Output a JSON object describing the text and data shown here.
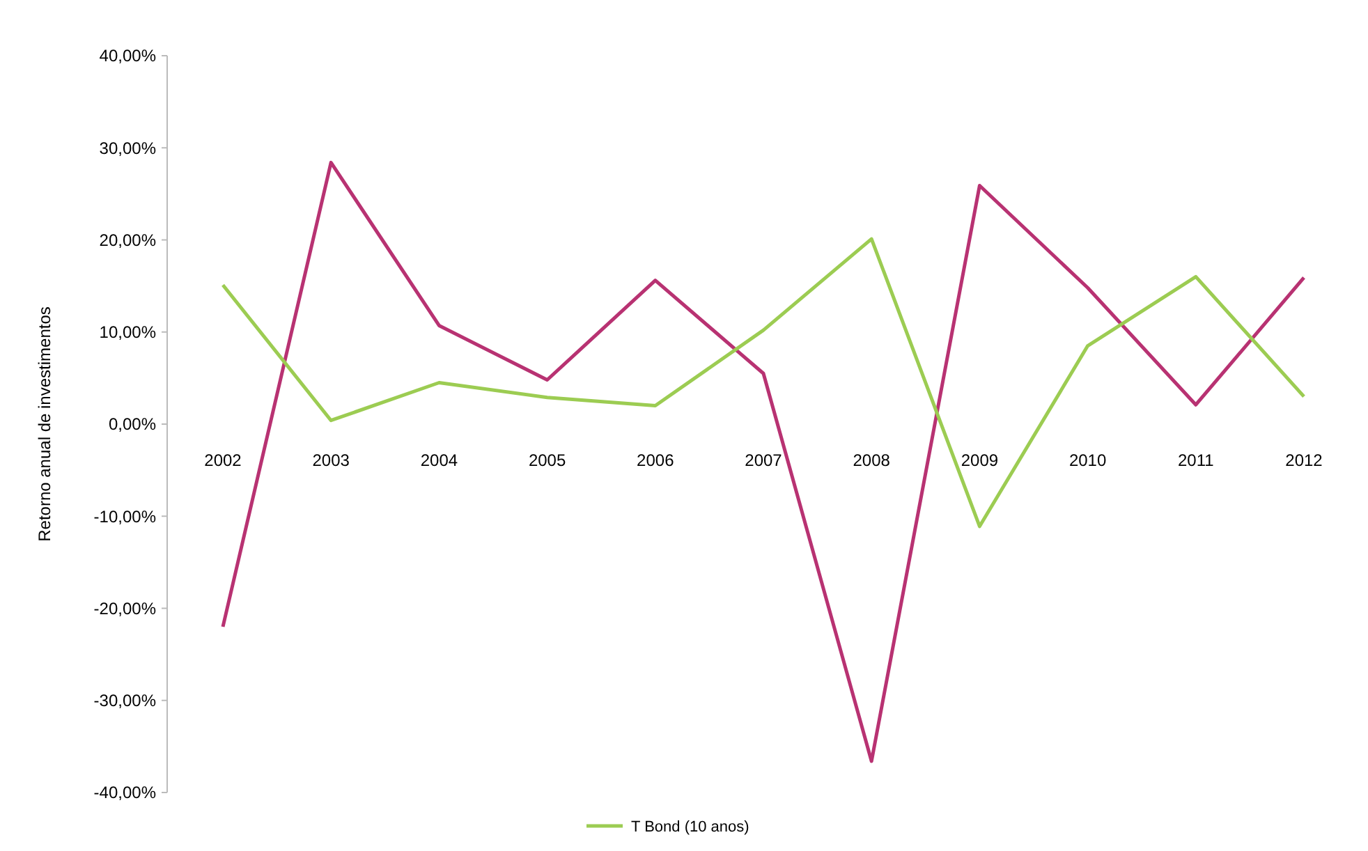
{
  "chart_data": {
    "type": "line",
    "ylabel": "Retorno anual de investimentos",
    "categories": [
      "2002",
      "2003",
      "2004",
      "2005",
      "2006",
      "2007",
      "2008",
      "2009",
      "2010",
      "2011",
      "2012"
    ],
    "series": [
      {
        "color": "#b83272",
        "values": [
          -22.0,
          28.4,
          10.7,
          4.8,
          15.6,
          5.5,
          -36.6,
          25.9,
          14.8,
          2.1,
          15.9
        ]
      },
      {
        "name": "T Bond (10 anos)",
        "color": "#9ccc52",
        "values": [
          15.1,
          0.4,
          4.5,
          2.9,
          2.0,
          10.2,
          20.1,
          -11.1,
          8.5,
          16.0,
          3.0
        ]
      }
    ],
    "ylim": [
      -40,
      40
    ],
    "yticks": [
      {
        "value": -40,
        "label": "-40,00%"
      },
      {
        "value": -30,
        "label": "-30,00%"
      },
      {
        "value": -20,
        "label": "-20,00%"
      },
      {
        "value": -10,
        "label": "-10,00%"
      },
      {
        "value": 0,
        "label": "0,00%"
      },
      {
        "value": 10,
        "label": "10,00%"
      },
      {
        "value": 20,
        "label": "20,00%"
      },
      {
        "value": 30,
        "label": "30,00%"
      },
      {
        "value": 40,
        "label": "40,00%"
      }
    ],
    "grid": false,
    "legend": "bottom",
    "marker": "none",
    "line_style": "solid"
  }
}
